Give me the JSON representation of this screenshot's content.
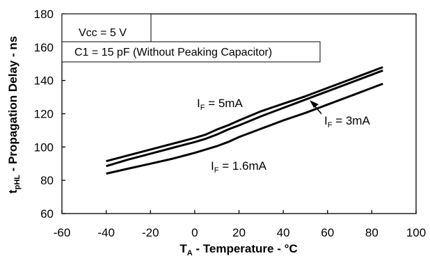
{
  "chart_data": {
    "type": "line",
    "xlabel_main": "T",
    "xlabel_sub": "A",
    "xlabel_rest": " - Temperature - °C",
    "ylabel_main": "t",
    "ylabel_sub": "pHL",
    "ylabel_rest": " - Propagation Delay - ns",
    "xlim": [
      -60,
      100
    ],
    "ylim": [
      60,
      180
    ],
    "xticks": [
      -60,
      -40,
      -20,
      0,
      20,
      40,
      60,
      80,
      100
    ],
    "yticks": [
      60,
      80,
      100,
      120,
      140,
      160,
      180
    ],
    "grid": false,
    "annotations": {
      "vcc": "Vcc = 5 V",
      "c1": "C1 = 15 pF (Without Peaking Capacitor)"
    },
    "series": [
      {
        "label_main": "I",
        "label_sub": "F",
        "label_rest": " = 5mA",
        "x": [
          -40,
          -30,
          -20,
          -10,
          0,
          5,
          10,
          15,
          20,
          30,
          40,
          50,
          60,
          70,
          80,
          85
        ],
        "y": [
          91.5,
          95,
          98.5,
          102,
          105.5,
          107.5,
          110.5,
          113,
          116,
          121.5,
          126,
          130.5,
          135.5,
          140.5,
          145.5,
          148
        ]
      },
      {
        "label_main": "I",
        "label_sub": "F",
        "label_rest": " = 3mA",
        "x": [
          -40,
          -30,
          -20,
          -10,
          0,
          5,
          10,
          15,
          20,
          30,
          40,
          50,
          60,
          70,
          80,
          85
        ],
        "y": [
          88.5,
          92.5,
          96,
          99.5,
          103,
          105,
          107.5,
          110.5,
          113,
          118.5,
          123.5,
          128.5,
          133.5,
          138.5,
          143.5,
          146
        ]
      },
      {
        "label_main": "I",
        "label_sub": "F",
        "label_rest": " = 1.6mA",
        "x": [
          -40,
          -30,
          -20,
          -10,
          0,
          10,
          15,
          20,
          30,
          40,
          50,
          60,
          70,
          80,
          85
        ],
        "y": [
          84,
          87,
          90,
          93,
          96.5,
          100.5,
          103,
          106,
          111,
          116,
          120.5,
          125.5,
          130.5,
          135.5,
          138
        ]
      }
    ]
  }
}
